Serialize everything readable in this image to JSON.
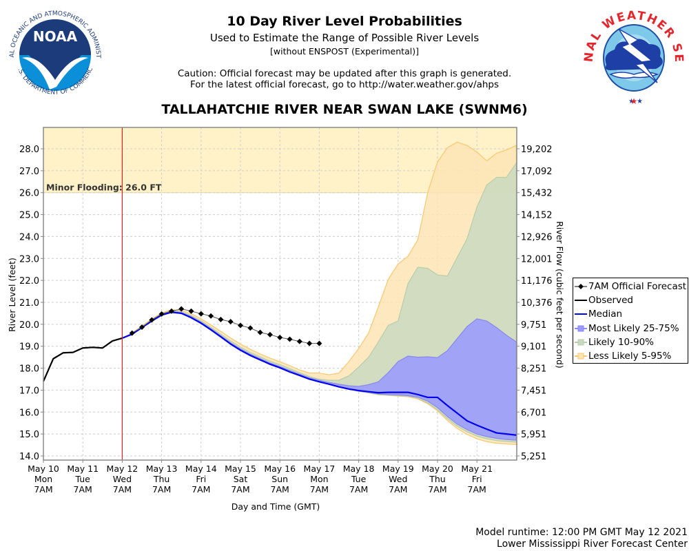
{
  "header": {
    "title": "10 Day River Level Probabilities",
    "subtitle": "Used to Estimate the Range of Possible River Levels",
    "note": "[without ENSPOST (Experimental)]",
    "caution_line1": "Caution: Official forecast may be updated after this graph is generated.",
    "caution_line2": "For the latest official forecast, go to http://water.weather.gov/ahps",
    "station": "TALLAHATCHIE RIVER NEAR SWAN LAKE (SWNM6)"
  },
  "logos": {
    "left": {
      "name": "NOAA",
      "ring_text": "NATIONAL OCEANIC AND ATMOSPHERIC ADMINISTRATION",
      "bottom_text": "U.S. DEPARTMENT OF COMMERCE"
    },
    "right": {
      "name": "NATIONAL WEATHER SERVICE"
    }
  },
  "footer": {
    "runtime": "Model runtime: 12:00 PM GMT May 12 2021",
    "center": "Lower Mississippi River Forecast Center"
  },
  "colors": {
    "observed": "#000000",
    "forecast": "#000000",
    "median": "#0000ee",
    "band_25_75": "#9999ff",
    "band_10_90": "#c9d9c0",
    "band_5_95": "#fde4b4",
    "band_5_95_edge": "#f9c770",
    "flood_zone": "#fff2c8",
    "now_line": "#dd2222"
  },
  "chart_data": {
    "type": "area",
    "title": "TALLAHATCHIE RIVER NEAR SWAN LAKE (SWNM6)",
    "xlabel": "Day and Time (GMT)",
    "ylabel": "River Level (feet)",
    "y2label": "River Flow (cubic feet per second)",
    "ylim": [
      13.8,
      29.0
    ],
    "x_unit": "hours since May 10 7AM GMT",
    "xlim": [
      0,
      258
    ],
    "grid": true,
    "legend_position": "right",
    "now_x": 48,
    "x_ticks": [
      {
        "x": 0,
        "label": [
          "May 10",
          "Mon",
          "7AM"
        ]
      },
      {
        "x": 24,
        "label": [
          "May 11",
          "Tue",
          "7AM"
        ]
      },
      {
        "x": 48,
        "label": [
          "May 12",
          "Wed",
          "7AM"
        ]
      },
      {
        "x": 72,
        "label": [
          "May 13",
          "Thu",
          "7AM"
        ]
      },
      {
        "x": 96,
        "label": [
          "May 14",
          "Fri",
          "7AM"
        ]
      },
      {
        "x": 120,
        "label": [
          "May 15",
          "Sat",
          "7AM"
        ]
      },
      {
        "x": 144,
        "label": [
          "May 16",
          "Sun",
          "7AM"
        ]
      },
      {
        "x": 168,
        "label": [
          "May 17",
          "Mon",
          "7AM"
        ]
      },
      {
        "x": 192,
        "label": [
          "May 18",
          "Tue",
          "7AM"
        ]
      },
      {
        "x": 216,
        "label": [
          "May 19",
          "Wed",
          "7AM"
        ]
      },
      {
        "x": 240,
        "label": [
          "May 20",
          "Thu",
          "7AM"
        ]
      },
      {
        "x": 264,
        "label": [
          "May 21",
          "Fri",
          "7AM"
        ]
      }
    ],
    "y_ticks": [
      14.0,
      15.0,
      16.0,
      17.0,
      18.0,
      19.0,
      20.0,
      21.0,
      22.0,
      23.0,
      24.0,
      25.0,
      26.0,
      27.0,
      28.0
    ],
    "y_tick_labels": [
      "14.0",
      "15.0",
      "16.0",
      "17.0",
      "18.0",
      "19.0",
      "20.0",
      "21.0",
      "22.0",
      "23.0",
      "24.0",
      "25.0",
      "26.0",
      "27.0",
      "28.0"
    ],
    "y2_tick_labels": [
      "5,251",
      "5,951",
      "6,701",
      "7,451",
      "8,251",
      "9,101",
      "9,751",
      "10,376",
      "11,176",
      "12,001",
      "12,926",
      "14,152",
      "15,432",
      "17,092",
      "19,202"
    ],
    "flood": {
      "label": "Minor Flooding: 26.0 FT",
      "stage": 26.0
    },
    "legend": [
      {
        "key": "forecast",
        "label": "7AM Official Forecast"
      },
      {
        "key": "observed",
        "label": "Observed"
      },
      {
        "key": "median",
        "label": "Median"
      },
      {
        "key": "band_25_75",
        "label": "Most Likely 25-75%"
      },
      {
        "key": "band_10_90",
        "label": "Likely 10-90%"
      },
      {
        "key": "band_5_95",
        "label": "Less Likely 5-95%"
      }
    ],
    "observed": {
      "x": [
        0,
        6,
        12,
        18,
        24,
        30,
        36,
        42,
        48
      ],
      "y": [
        17.4,
        18.43,
        18.7,
        18.72,
        18.92,
        18.95,
        18.92,
        19.24,
        19.37
      ]
    },
    "forecast": {
      "x": [
        54,
        60,
        66,
        72,
        78,
        84,
        90,
        96,
        102,
        108,
        114,
        120,
        126,
        132,
        138,
        144,
        150,
        156,
        162,
        168
      ],
      "y": [
        19.6,
        19.87,
        20.2,
        20.47,
        20.6,
        20.7,
        20.6,
        20.48,
        20.38,
        20.22,
        20.12,
        19.95,
        19.83,
        19.63,
        19.53,
        19.4,
        19.32,
        19.22,
        19.13,
        19.13
      ]
    },
    "bands_x": [
      48,
      54,
      60,
      66,
      72,
      78,
      84,
      90,
      96,
      102,
      108,
      114,
      120,
      126,
      132,
      138,
      144,
      150,
      156,
      162,
      168,
      174,
      180,
      186,
      192,
      198,
      204,
      210,
      216,
      222,
      228,
      234,
      240,
      246,
      252,
      258,
      264,
      270,
      276,
      282,
      288
    ],
    "median": [
      19.37,
      19.55,
      19.85,
      20.15,
      20.42,
      20.55,
      20.5,
      20.3,
      20.05,
      19.75,
      19.43,
      19.1,
      18.82,
      18.58,
      18.38,
      18.18,
      18.02,
      17.83,
      17.67,
      17.5,
      17.38,
      17.27,
      17.15,
      17.05,
      16.98,
      16.93,
      16.88,
      16.9,
      16.9,
      16.9,
      16.8,
      16.67,
      16.67,
      16.3,
      15.95,
      15.6,
      15.4,
      15.22,
      15.05,
      15.0,
      14.95
    ],
    "p25": [
      19.37,
      19.55,
      19.85,
      20.15,
      20.42,
      20.55,
      20.5,
      20.3,
      20.05,
      19.75,
      19.43,
      19.1,
      18.82,
      18.58,
      18.38,
      18.18,
      18.02,
      17.83,
      17.67,
      17.5,
      17.38,
      17.27,
      17.15,
      17.05,
      16.95,
      16.9,
      16.83,
      16.8,
      16.78,
      16.75,
      16.68,
      16.5,
      16.2,
      15.8,
      15.45,
      15.2,
      15.0,
      14.88,
      14.8,
      14.75,
      14.72
    ],
    "p75": [
      19.37,
      19.56,
      19.87,
      20.17,
      20.45,
      20.58,
      20.54,
      20.35,
      20.1,
      19.8,
      19.48,
      19.16,
      18.88,
      18.64,
      18.44,
      18.24,
      18.08,
      17.9,
      17.73,
      17.56,
      17.45,
      17.35,
      17.27,
      17.2,
      17.17,
      17.25,
      17.38,
      17.8,
      18.3,
      18.55,
      18.5,
      18.52,
      18.48,
      18.8,
      19.35,
      19.9,
      20.25,
      20.15,
      19.85,
      19.5,
      19.2
    ],
    "p10": [
      19.37,
      19.55,
      19.85,
      20.15,
      20.42,
      20.55,
      20.5,
      20.3,
      20.05,
      19.75,
      19.43,
      19.1,
      18.82,
      18.58,
      18.38,
      18.18,
      18.02,
      17.83,
      17.67,
      17.5,
      17.38,
      17.27,
      17.15,
      17.05,
      16.95,
      16.88,
      16.8,
      16.77,
      16.75,
      16.72,
      16.63,
      16.42,
      16.1,
      15.7,
      15.35,
      15.1,
      14.9,
      14.78,
      14.7,
      14.66,
      14.63
    ],
    "p90": [
      19.37,
      19.58,
      19.9,
      20.2,
      20.48,
      20.62,
      20.58,
      20.4,
      20.16,
      19.86,
      19.55,
      19.24,
      18.96,
      18.72,
      18.52,
      18.32,
      18.16,
      17.98,
      17.8,
      17.62,
      17.5,
      17.45,
      17.45,
      17.65,
      18.05,
      18.5,
      19.2,
      19.95,
      20.15,
      21.85,
      22.6,
      22.55,
      22.25,
      22.2,
      23.05,
      23.9,
      25.35,
      26.35,
      26.7,
      26.7,
      27.35
    ],
    "p5": [
      19.37,
      19.55,
      19.85,
      20.15,
      20.42,
      20.55,
      20.5,
      20.3,
      20.05,
      19.75,
      19.43,
      19.1,
      18.82,
      18.58,
      18.38,
      18.18,
      18.02,
      17.83,
      17.67,
      17.5,
      17.38,
      17.27,
      17.15,
      17.05,
      16.95,
      16.87,
      16.79,
      16.76,
      16.73,
      16.7,
      16.6,
      16.38,
      16.05,
      15.62,
      15.25,
      14.98,
      14.78,
      14.65,
      14.58,
      14.55,
      14.52
    ],
    "p95": [
      19.37,
      19.6,
      19.93,
      20.24,
      20.52,
      20.66,
      20.64,
      20.48,
      20.25,
      19.97,
      19.68,
      19.38,
      19.1,
      18.86,
      18.65,
      18.46,
      18.3,
      18.12,
      17.92,
      17.78,
      17.78,
      17.7,
      17.78,
      18.3,
      18.9,
      19.6,
      20.8,
      22.05,
      22.75,
      23.1,
      23.85,
      26.0,
      27.4,
      28.05,
      28.3,
      28.15,
      27.85,
      27.45,
      27.8,
      27.95,
      28.15
    ]
  }
}
